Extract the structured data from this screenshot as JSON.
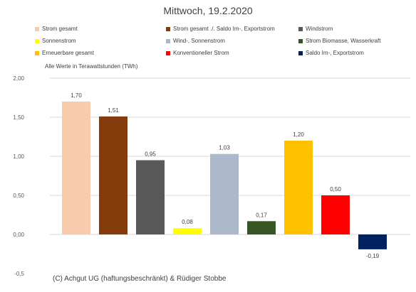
{
  "chart_data": {
    "type": "bar",
    "title": "Mittwoch, 19.2.2020",
    "subtitle": "Alle Werte in Terawattstunden (TWh)",
    "categories": [
      "Strom gesamt",
      "Strom gesamt ./. Saldo Im-, Exportstrom",
      "Windstrom",
      "Sonnenstrom",
      "Wind-, Sonnenstrom",
      "Strom Biomasse, Wasserkraft",
      "Erneuerbare gesamt",
      "Konventioneller Strom",
      "Saldo Im-, Exportstrom"
    ],
    "values": [
      1.7,
      1.51,
      0.95,
      0.08,
      1.03,
      0.17,
      1.2,
      0.5,
      -0.19
    ],
    "value_labels": [
      "1,70",
      "1,51",
      "0,95",
      "0,08",
      "1,03",
      "0,17",
      "1,20",
      "0,50",
      "-0,19"
    ],
    "colors": [
      "#F8CBAD",
      "#843C0C",
      "#595959",
      "#FFFF00",
      "#ADB9CA",
      "#375623",
      "#FFC000",
      "#FF0000",
      "#002060"
    ],
    "yticks": [
      2.0,
      1.5,
      1.0,
      0.5,
      0.0,
      -0.5
    ],
    "ytick_labels": [
      "2,00",
      "1,50",
      "1,00",
      "0,50",
      "0,00",
      "-0,5"
    ],
    "ylim": [
      -0.5,
      2.0
    ],
    "grid": true,
    "legend_position": "top"
  },
  "copyright": "(C) Achgut UG (haftungsbeschränkt) & Rüdiger Stobbe"
}
